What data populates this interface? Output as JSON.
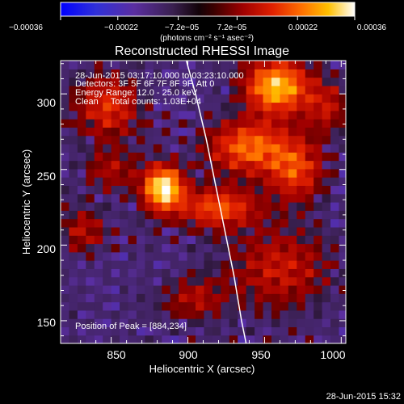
{
  "chart_data": {
    "type": "heatmap",
    "title": "Reconstructed RHESSI Image",
    "xlabel": "Heliocentric X (arcsec)",
    "ylabel": "Heliocentric Y (arcsec)",
    "xlim": [
      817,
      1003
    ],
    "ylim": [
      135,
      322
    ],
    "xticks": [
      850,
      900,
      950,
      1000
    ],
    "xtick_labels": [
      "850",
      "900",
      "950",
      "1000"
    ],
    "yticks": [
      150,
      200,
      250,
      300
    ],
    "ytick_labels": [
      "150",
      "200",
      "250",
      "300"
    ],
    "colorbar": {
      "min": -0.00036,
      "max": 0.00036,
      "tick_values": [
        -0.00036,
        -0.00022,
        -7.2e-05,
        7.2e-05,
        0.00022,
        0.00036
      ],
      "tick_labels": [
        "−0.00036",
        "−0.00022",
        "−7.2e−05",
        "7.2e−05",
        "0.00022",
        "0.00036"
      ],
      "unit_label": "(photons cm⁻² s⁻¹ asec⁻²)"
    },
    "annotations": [
      "28-Jun-2015 03:17:10.000 to 03:23:10.000",
      "Detectors: 3F 5F 6F 7F 8F 9F, Att 0",
      "Energy Range: 12.0 - 25.0 keV",
      "Clean     Total counts: 1.03E+04"
    ],
    "peak_label": "Position of Peak = [884,234]",
    "peak": {
      "x": 884,
      "y": 234
    },
    "limb_curve": [
      [
        899,
        322
      ],
      [
        905,
        300
      ],
      [
        912,
        270
      ],
      [
        918,
        240
      ],
      [
        924,
        210
      ],
      [
        930,
        180
      ],
      [
        935,
        150
      ],
      [
        938,
        135
      ]
    ],
    "blobs": [
      {
        "x": 884,
        "y": 238,
        "sx": 9,
        "sy": 10,
        "amp": 1.0
      },
      {
        "x": 958,
        "y": 305,
        "sx": 14,
        "sy": 12,
        "amp": 0.85
      },
      {
        "x": 940,
        "y": 265,
        "sx": 18,
        "sy": 12,
        "amp": 0.62
      },
      {
        "x": 920,
        "y": 225,
        "sx": 18,
        "sy": 9,
        "amp": 0.55
      },
      {
        "x": 970,
        "y": 250,
        "sx": 12,
        "sy": 14,
        "amp": 0.5
      },
      {
        "x": 848,
        "y": 292,
        "sx": 14,
        "sy": 14,
        "amp": 0.45
      },
      {
        "x": 960,
        "y": 185,
        "sx": 22,
        "sy": 18,
        "amp": 0.35
      },
      {
        "x": 832,
        "y": 210,
        "sx": 10,
        "sy": 10,
        "amp": 0.3
      },
      {
        "x": 990,
        "y": 292,
        "sx": 10,
        "sy": 12,
        "amp": 0.32
      },
      {
        "x": 905,
        "y": 165,
        "sx": 14,
        "sy": 10,
        "amp": 0.28
      },
      {
        "x": 850,
        "y": 250,
        "sx": 12,
        "sy": 10,
        "amp": 0.26
      }
    ]
  },
  "footer_timestamp": "28-Jun-2015 15:32"
}
